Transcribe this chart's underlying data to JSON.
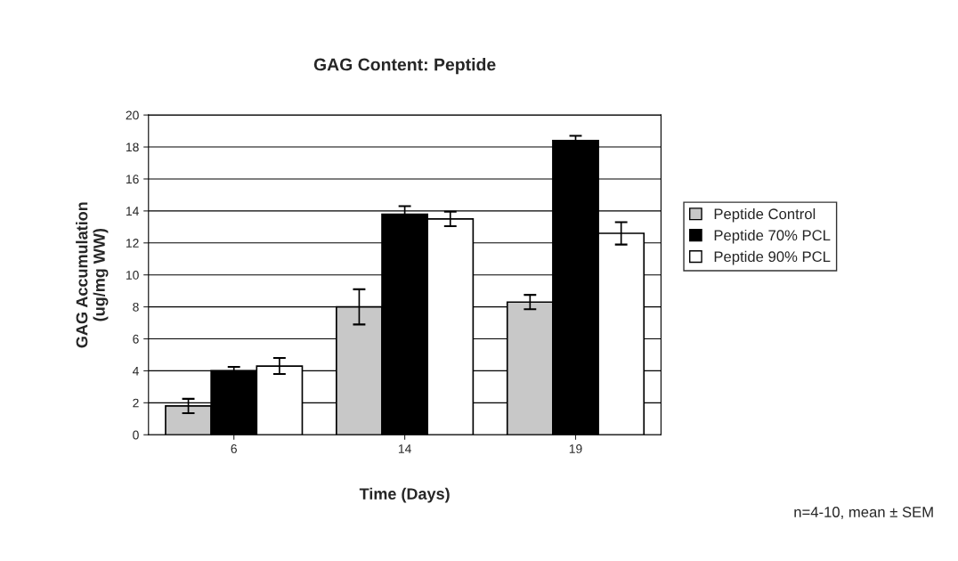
{
  "chart_data": {
    "type": "bar",
    "title": "GAG Content: Peptide",
    "xlabel": "Time (Days)",
    "ylabel": "GAG Accumulation\n(ug/mg WW)",
    "categories": [
      "6",
      "14",
      "19"
    ],
    "series": [
      {
        "name": "Peptide Control",
        "color": "#c8c8c8",
        "values": [
          1.8,
          8.0,
          8.3
        ],
        "errors": [
          0.45,
          1.1,
          0.45
        ]
      },
      {
        "name": "Peptide 70% PCL",
        "color": "#000000",
        "values": [
          4.0,
          13.8,
          18.4
        ],
        "errors": [
          0.25,
          0.5,
          0.3
        ]
      },
      {
        "name": "Peptide 90% PCL",
        "color": "#ffffff",
        "values": [
          4.3,
          13.5,
          12.6
        ],
        "errors": [
          0.5,
          0.45,
          0.7
        ]
      }
    ],
    "ylim": [
      0,
      20
    ],
    "yticks": [
      0,
      2,
      4,
      6,
      8,
      10,
      12,
      14,
      16,
      18,
      20
    ],
    "grid": "y",
    "legend": "right",
    "annotations": [
      "n=4-10, mean ± SEM"
    ]
  }
}
